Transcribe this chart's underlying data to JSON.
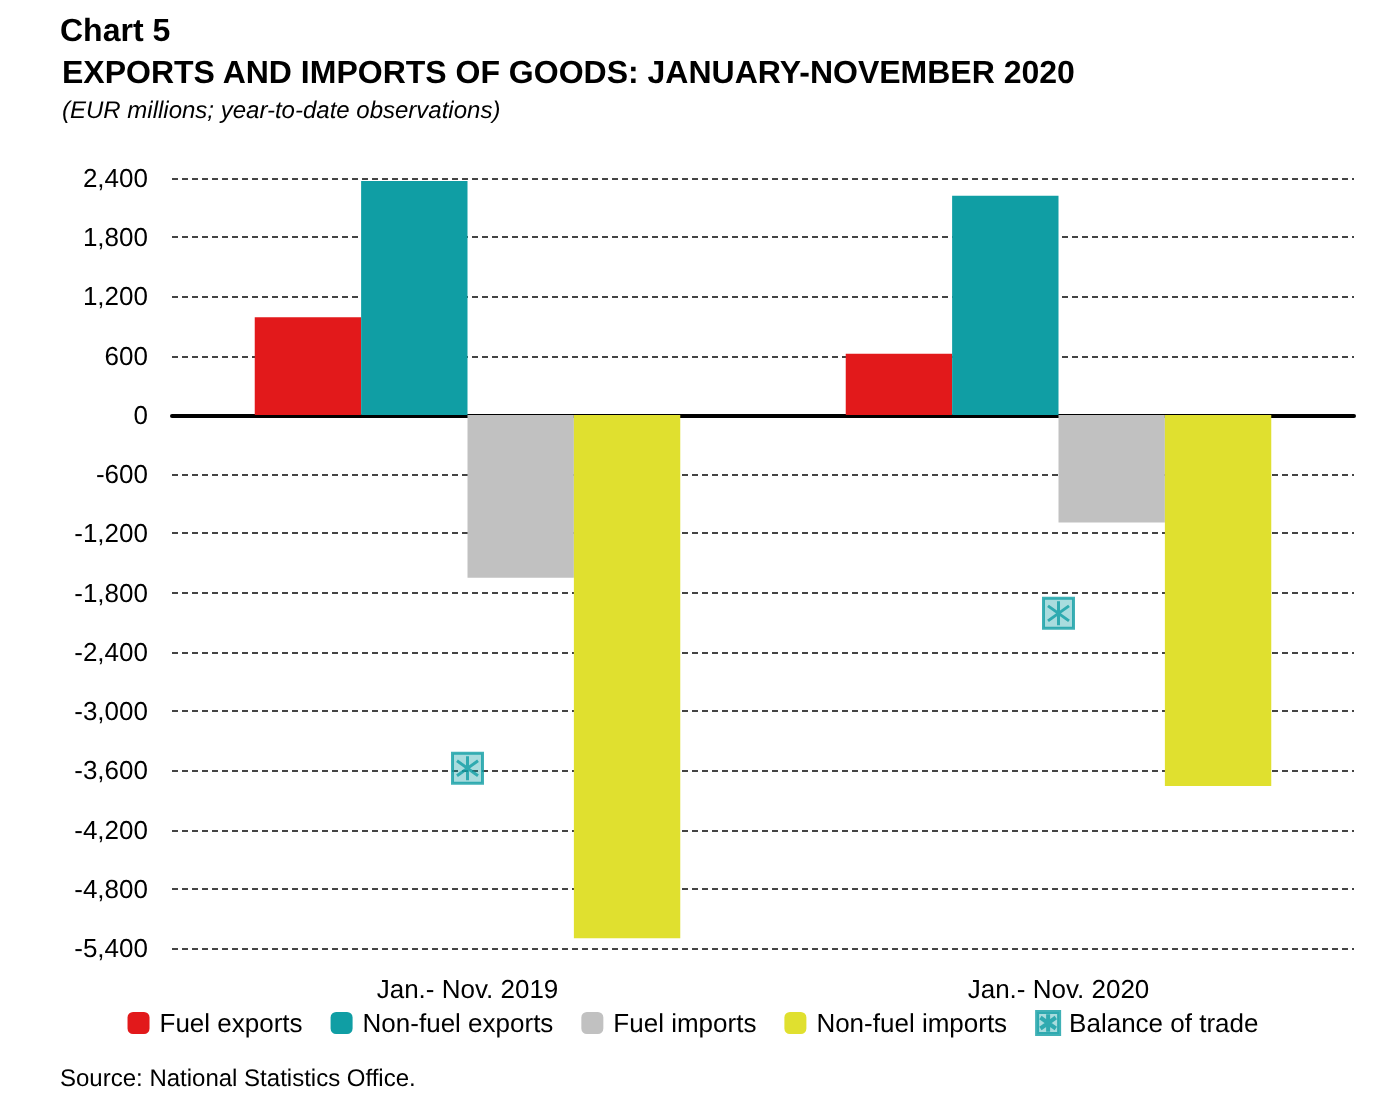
{
  "chart_data": {
    "type": "bar",
    "title": "EXPORTS AND IMPORTS OF GOODS: JANUARY-NOVEMBER 2020",
    "subtitle": "(EUR millions; year-to-date observations)",
    "annotations": [
      "Chart 5",
      "Source: National Statistics Office."
    ],
    "categories": [
      "Jan.- Nov. 2019",
      "Jan.- Nov. 2020"
    ],
    "series": [
      {
        "name": "Fuel exports",
        "color": "#e2191b",
        "values": [
          990,
          620
        ]
      },
      {
        "name": "Non-fuel exports",
        "color": "#109ea4",
        "values": [
          2370,
          2220
        ]
      },
      {
        "name": "Fuel imports",
        "color": "#c1c1c1",
        "values": [
          -1650,
          -1090
        ]
      },
      {
        "name": "Non-fuel imports",
        "color": "#e0e02f",
        "values": [
          -5300,
          -3760
        ]
      },
      {
        "name": "Balance of trade",
        "type": "scatter",
        "color": "#109ea4",
        "marker": "cross",
        "x": [
          "Jan.- Nov. 2019",
          "Jan.- Nov. 2020"
        ],
        "values": [
          -3580,
          -2010
        ]
      }
    ],
    "ylim": [
      -5400,
      2400
    ],
    "yticks": [
      {
        "value": -5400,
        "label": "-5,400"
      },
      {
        "value": -4800,
        "label": "-4,800"
      },
      {
        "value": -4200,
        "label": "-4,200"
      },
      {
        "value": -3600,
        "label": "-3,600"
      },
      {
        "value": -3000,
        "label": "-3,000"
      },
      {
        "value": -2400,
        "label": "-2,400"
      },
      {
        "value": -1800,
        "label": "-1,800"
      },
      {
        "value": -1200,
        "label": "-1,200"
      },
      {
        "value": -600,
        "label": "-600"
      },
      {
        "value": 0,
        "label": "0"
      },
      {
        "value": 600,
        "label": "600"
      },
      {
        "value": 1200,
        "label": "1,200"
      },
      {
        "value": 1800,
        "label": "1,800"
      },
      {
        "value": 2400,
        "label": "2,400"
      }
    ],
    "grid": "y",
    "legend": "bottom"
  }
}
